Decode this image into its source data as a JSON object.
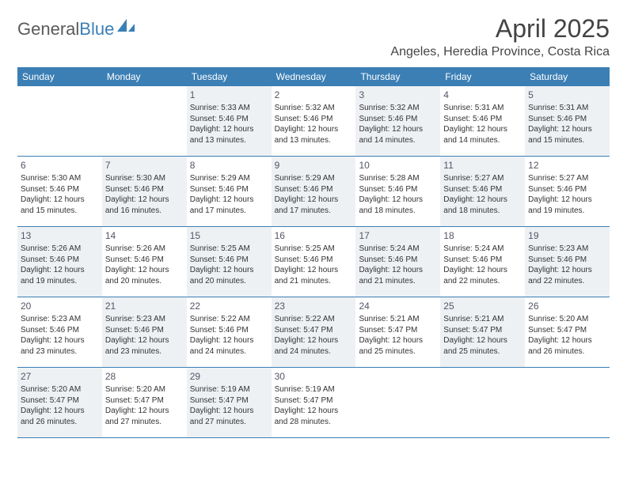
{
  "brand": {
    "part1": "General",
    "part2": "Blue"
  },
  "title": "April 2025",
  "location": "Angeles, Heredia Province, Costa Rica",
  "colors": {
    "header_bg": "#3b7fb5",
    "header_text": "#ffffff",
    "shade_bg": "#eef1f4",
    "rule": "#3b7fb5",
    "body_text": "#333333",
    "title_text": "#444444"
  },
  "day_headers": [
    "Sunday",
    "Monday",
    "Tuesday",
    "Wednesday",
    "Thursday",
    "Friday",
    "Saturday"
  ],
  "weeks": [
    [
      {
        "kind": "blank",
        "shade": false
      },
      {
        "kind": "blank",
        "shade": false
      },
      {
        "kind": "day",
        "num": "1",
        "shade": true,
        "sunrise": "5:33 AM",
        "sunset": "5:46 PM",
        "daylight": "12 hours and 13 minutes."
      },
      {
        "kind": "day",
        "num": "2",
        "shade": false,
        "sunrise": "5:32 AM",
        "sunset": "5:46 PM",
        "daylight": "12 hours and 13 minutes."
      },
      {
        "kind": "day",
        "num": "3",
        "shade": true,
        "sunrise": "5:32 AM",
        "sunset": "5:46 PM",
        "daylight": "12 hours and 14 minutes."
      },
      {
        "kind": "day",
        "num": "4",
        "shade": false,
        "sunrise": "5:31 AM",
        "sunset": "5:46 PM",
        "daylight": "12 hours and 14 minutes."
      },
      {
        "kind": "day",
        "num": "5",
        "shade": true,
        "sunrise": "5:31 AM",
        "sunset": "5:46 PM",
        "daylight": "12 hours and 15 minutes."
      }
    ],
    [
      {
        "kind": "day",
        "num": "6",
        "shade": false,
        "sunrise": "5:30 AM",
        "sunset": "5:46 PM",
        "daylight": "12 hours and 15 minutes."
      },
      {
        "kind": "day",
        "num": "7",
        "shade": true,
        "sunrise": "5:30 AM",
        "sunset": "5:46 PM",
        "daylight": "12 hours and 16 minutes."
      },
      {
        "kind": "day",
        "num": "8",
        "shade": false,
        "sunrise": "5:29 AM",
        "sunset": "5:46 PM",
        "daylight": "12 hours and 17 minutes."
      },
      {
        "kind": "day",
        "num": "9",
        "shade": true,
        "sunrise": "5:29 AM",
        "sunset": "5:46 PM",
        "daylight": "12 hours and 17 minutes."
      },
      {
        "kind": "day",
        "num": "10",
        "shade": false,
        "sunrise": "5:28 AM",
        "sunset": "5:46 PM",
        "daylight": "12 hours and 18 minutes."
      },
      {
        "kind": "day",
        "num": "11",
        "shade": true,
        "sunrise": "5:27 AM",
        "sunset": "5:46 PM",
        "daylight": "12 hours and 18 minutes."
      },
      {
        "kind": "day",
        "num": "12",
        "shade": false,
        "sunrise": "5:27 AM",
        "sunset": "5:46 PM",
        "daylight": "12 hours and 19 minutes."
      }
    ],
    [
      {
        "kind": "day",
        "num": "13",
        "shade": true,
        "sunrise": "5:26 AM",
        "sunset": "5:46 PM",
        "daylight": "12 hours and 19 minutes."
      },
      {
        "kind": "day",
        "num": "14",
        "shade": false,
        "sunrise": "5:26 AM",
        "sunset": "5:46 PM",
        "daylight": "12 hours and 20 minutes."
      },
      {
        "kind": "day",
        "num": "15",
        "shade": true,
        "sunrise": "5:25 AM",
        "sunset": "5:46 PM",
        "daylight": "12 hours and 20 minutes."
      },
      {
        "kind": "day",
        "num": "16",
        "shade": false,
        "sunrise": "5:25 AM",
        "sunset": "5:46 PM",
        "daylight": "12 hours and 21 minutes."
      },
      {
        "kind": "day",
        "num": "17",
        "shade": true,
        "sunrise": "5:24 AM",
        "sunset": "5:46 PM",
        "daylight": "12 hours and 21 minutes."
      },
      {
        "kind": "day",
        "num": "18",
        "shade": false,
        "sunrise": "5:24 AM",
        "sunset": "5:46 PM",
        "daylight": "12 hours and 22 minutes."
      },
      {
        "kind": "day",
        "num": "19",
        "shade": true,
        "sunrise": "5:23 AM",
        "sunset": "5:46 PM",
        "daylight": "12 hours and 22 minutes."
      }
    ],
    [
      {
        "kind": "day",
        "num": "20",
        "shade": false,
        "sunrise": "5:23 AM",
        "sunset": "5:46 PM",
        "daylight": "12 hours and 23 minutes."
      },
      {
        "kind": "day",
        "num": "21",
        "shade": true,
        "sunrise": "5:23 AM",
        "sunset": "5:46 PM",
        "daylight": "12 hours and 23 minutes."
      },
      {
        "kind": "day",
        "num": "22",
        "shade": false,
        "sunrise": "5:22 AM",
        "sunset": "5:46 PM",
        "daylight": "12 hours and 24 minutes."
      },
      {
        "kind": "day",
        "num": "23",
        "shade": true,
        "sunrise": "5:22 AM",
        "sunset": "5:47 PM",
        "daylight": "12 hours and 24 minutes."
      },
      {
        "kind": "day",
        "num": "24",
        "shade": false,
        "sunrise": "5:21 AM",
        "sunset": "5:47 PM",
        "daylight": "12 hours and 25 minutes."
      },
      {
        "kind": "day",
        "num": "25",
        "shade": true,
        "sunrise": "5:21 AM",
        "sunset": "5:47 PM",
        "daylight": "12 hours and 25 minutes."
      },
      {
        "kind": "day",
        "num": "26",
        "shade": false,
        "sunrise": "5:20 AM",
        "sunset": "5:47 PM",
        "daylight": "12 hours and 26 minutes."
      }
    ],
    [
      {
        "kind": "day",
        "num": "27",
        "shade": true,
        "sunrise": "5:20 AM",
        "sunset": "5:47 PM",
        "daylight": "12 hours and 26 minutes."
      },
      {
        "kind": "day",
        "num": "28",
        "shade": false,
        "sunrise": "5:20 AM",
        "sunset": "5:47 PM",
        "daylight": "12 hours and 27 minutes."
      },
      {
        "kind": "day",
        "num": "29",
        "shade": true,
        "sunrise": "5:19 AM",
        "sunset": "5:47 PM",
        "daylight": "12 hours and 27 minutes."
      },
      {
        "kind": "day",
        "num": "30",
        "shade": false,
        "sunrise": "5:19 AM",
        "sunset": "5:47 PM",
        "daylight": "12 hours and 28 minutes."
      },
      {
        "kind": "blank",
        "shade": false
      },
      {
        "kind": "blank",
        "shade": false
      },
      {
        "kind": "blank",
        "shade": false
      }
    ]
  ],
  "labels": {
    "sunrise_prefix": "Sunrise: ",
    "sunset_prefix": "Sunset: ",
    "daylight_prefix": "Daylight: "
  }
}
